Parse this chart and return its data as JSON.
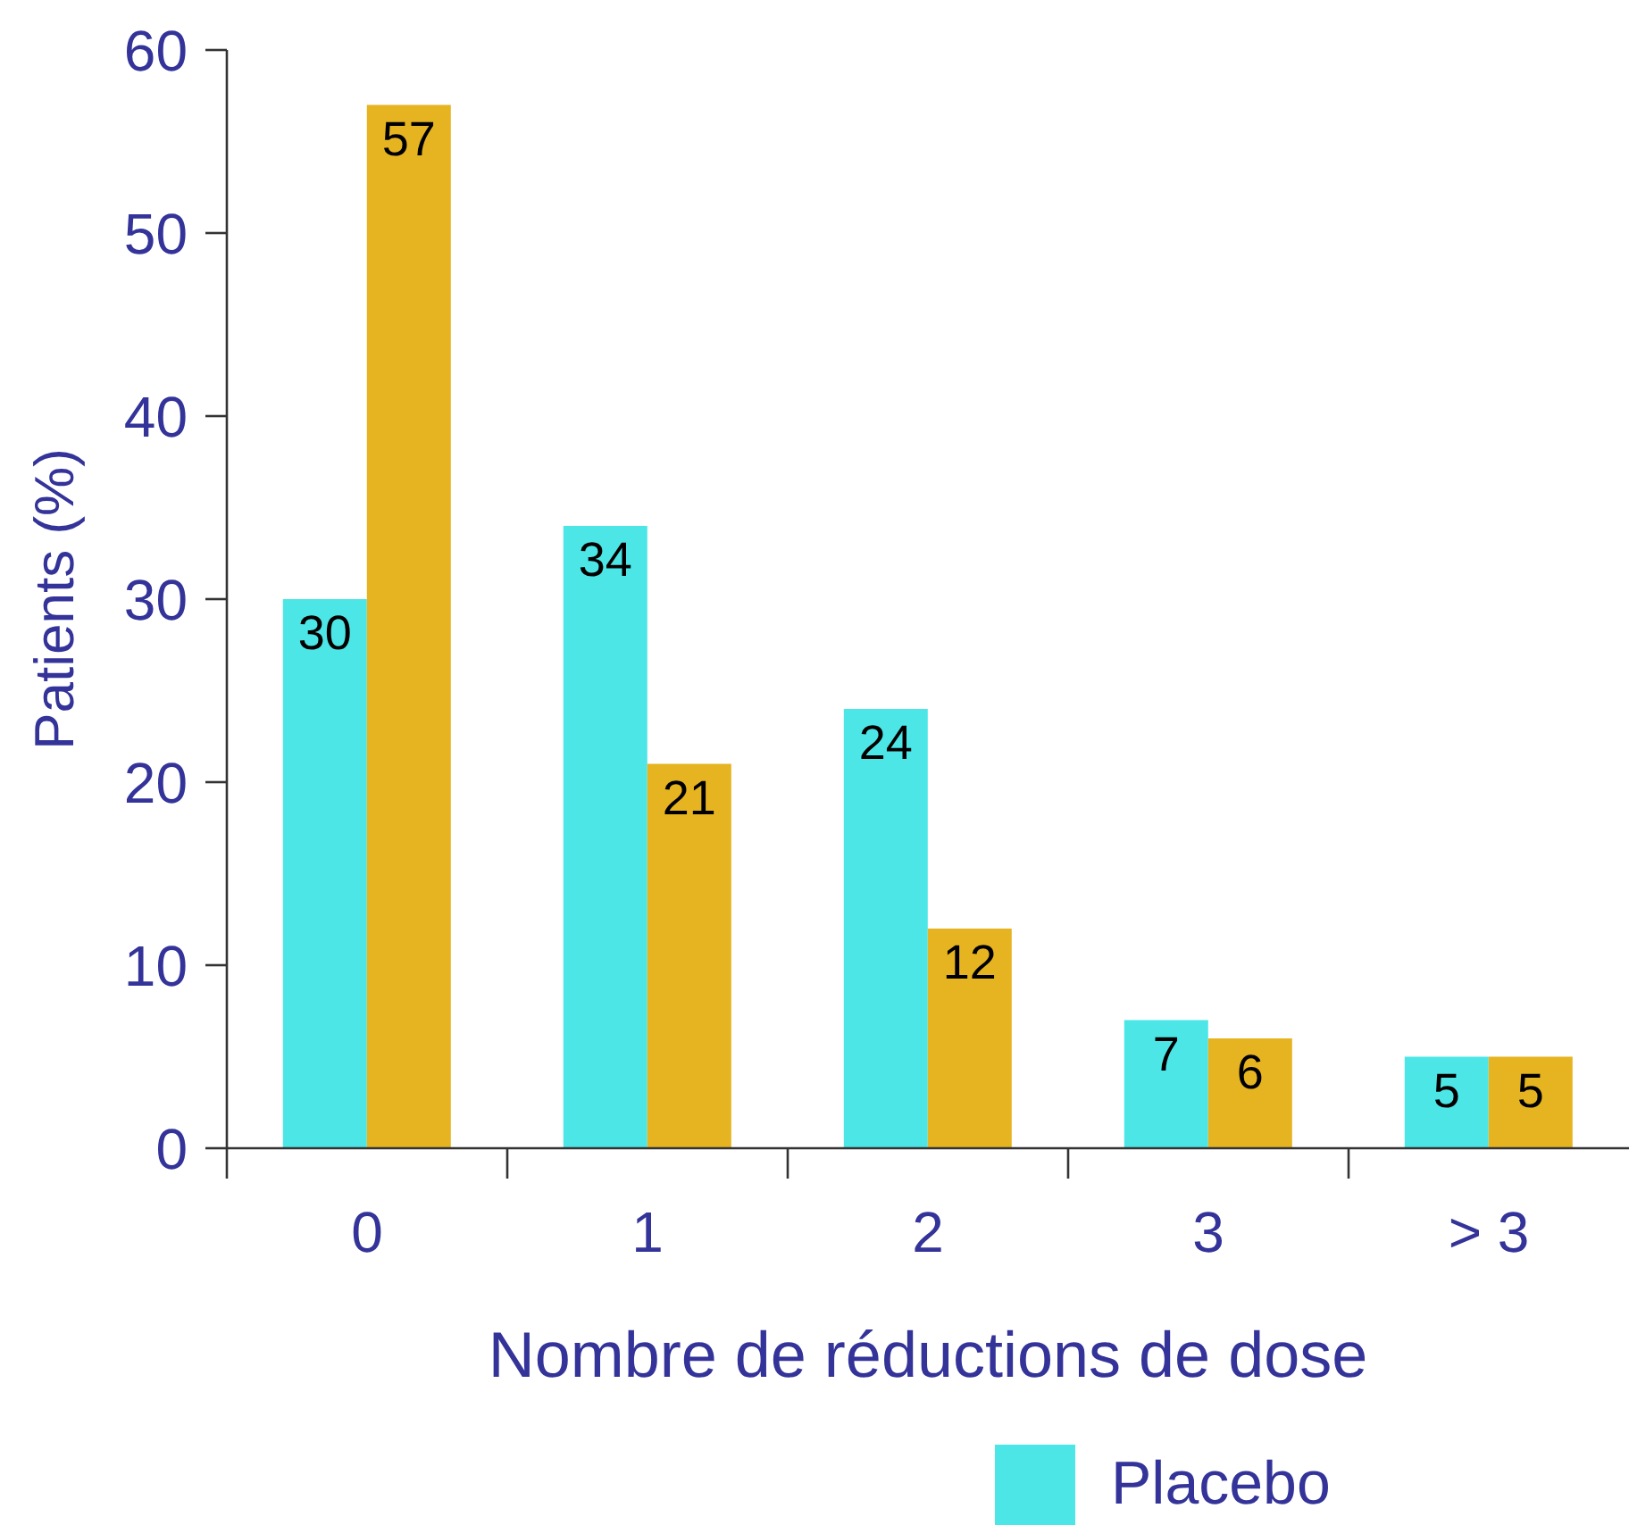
{
  "chart_data": {
    "type": "bar",
    "categories": [
      "0",
      "1",
      "2",
      "3",
      "> 3"
    ],
    "series": [
      {
        "name": "Placebo",
        "color": "#4de6e6",
        "values": [
          30,
          34,
          24,
          7,
          5
        ]
      },
      {
        "color": "#e6b420",
        "values": [
          57,
          21,
          12,
          6,
          5
        ]
      }
    ],
    "xlabel": "Nombre de réductions de dose",
    "ylabel": "Patients (%)",
    "ylim": [
      0,
      60
    ],
    "yticks": [
      0,
      10,
      20,
      30,
      40,
      50,
      60
    ],
    "data_labels": true,
    "legend": "bottom"
  }
}
